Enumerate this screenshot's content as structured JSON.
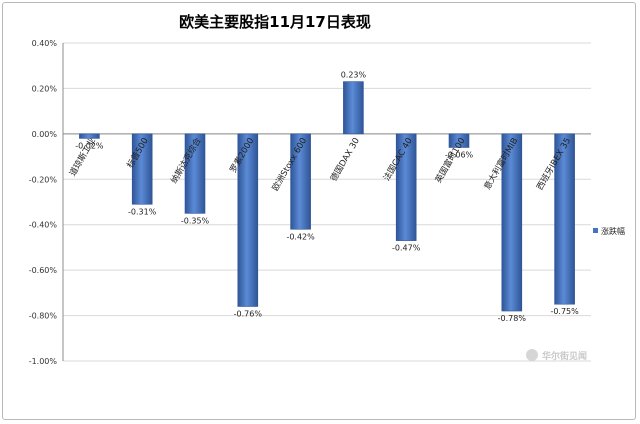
{
  "chart_data": {
    "type": "bar",
    "title": "欧美主要股指11月17日表现",
    "categories": [
      "道琼斯工业",
      "标普500",
      "纳斯达克综合",
      "罗素2000",
      "欧洲Stoxx 600",
      "德国DAX 30",
      "法国CAC 40",
      "英国富时100",
      "意大利富时MIB",
      "西班牙IBEX 35"
    ],
    "series": [
      {
        "name": "涨跌幅",
        "values": [
          -0.02,
          -0.31,
          -0.35,
          -0.76,
          -0.42,
          0.23,
          -0.47,
          -0.06,
          -0.78,
          -0.75
        ],
        "labels": [
          "-0.02%",
          "-0.31%",
          "-0.35%",
          "-0.76%",
          "-0.42%",
          "0.23%",
          "-0.47%",
          "-0.06%",
          "-0.78%",
          "-0.75%"
        ]
      }
    ],
    "yticks": [
      0.4,
      0.2,
      0.0,
      -0.2,
      -0.4,
      -0.6,
      -0.8,
      -1.0
    ],
    "ytick_labels": [
      "0.40%",
      "0.20%",
      "0.00%",
      "-0.20%",
      "-0.40%",
      "-0.60%",
      "-0.80%",
      "-1.00%"
    ],
    "ylim": [
      -1.0,
      0.4
    ],
    "grid": true,
    "legend_position": "right",
    "bar_color": "#4472c4",
    "watermark": "华尔街见闻"
  }
}
